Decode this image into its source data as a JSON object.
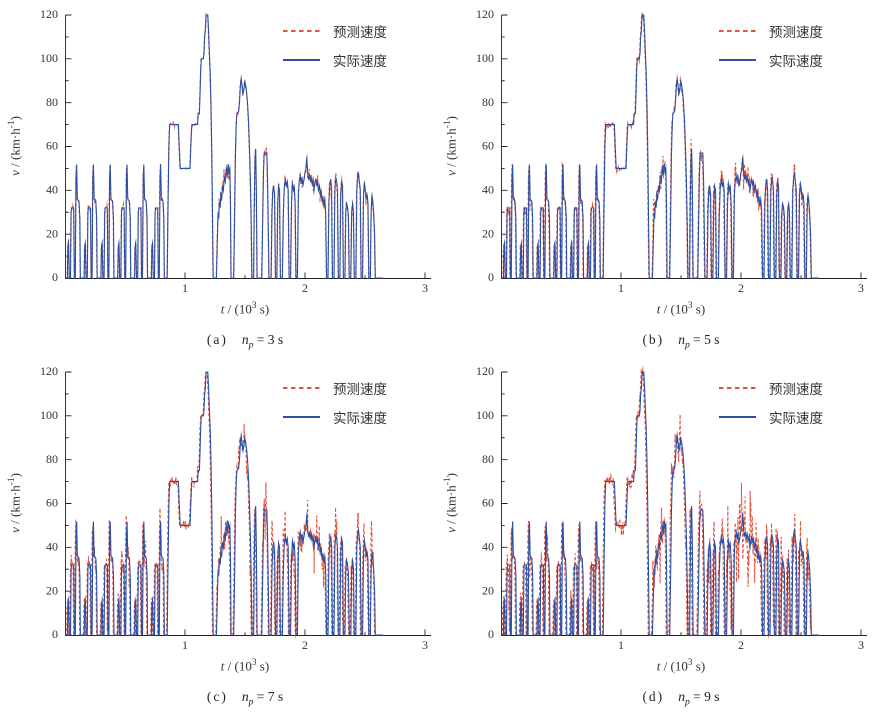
{
  "figure": {
    "background": "#ffffff",
    "text_color": "#333333"
  },
  "chart_data": {
    "type": "line",
    "title": "",
    "shared": {
      "xlabel": {
        "var": "t",
        "mid": " / (10",
        "sup": "3",
        "end": " s)"
      },
      "ylabel": {
        "var": "v",
        "mid": " / (km·h",
        "sup": "-1",
        "end": ")"
      },
      "xlim": [
        0,
        3.07
      ],
      "ylim": [
        0,
        120
      ],
      "x_major_ticks": [
        1,
        2,
        3
      ],
      "x_minor_ticks": [
        0.5,
        1.5,
        2.5
      ],
      "y_major_ticks": [
        0,
        20,
        40,
        60,
        80,
        100,
        120
      ],
      "y_minor_ticks": [
        10,
        30,
        50,
        70,
        90,
        110
      ],
      "grid": false,
      "legend_position": "top-right",
      "series": [
        {
          "name": "预测速度",
          "style": "dashed",
          "color": "#e2503a"
        },
        {
          "name": "实际速度",
          "style": "solid",
          "color": "#2b4fa5"
        }
      ],
      "param": {
        "var": "n",
        "sub": "p"
      },
      "actual_speed_profile": {
        "units": {
          "t": "10^3 s",
          "v": "km/h"
        },
        "urban_cycle_starts": [
          0.02,
          0.16,
          0.3,
          0.44,
          0.58,
          0.72
        ],
        "urban_cycle_shape": [
          [
            0,
            0
          ],
          [
            0.004,
            14
          ],
          [
            0.01,
            16
          ],
          [
            0.016,
            0
          ],
          [
            0.026,
            0
          ],
          [
            0.031,
            30
          ],
          [
            0.035,
            32
          ],
          [
            0.053,
            32
          ],
          [
            0.058,
            0
          ],
          [
            0.066,
            0
          ],
          [
            0.072,
            46
          ],
          [
            0.077,
            52
          ],
          [
            0.083,
            36
          ],
          [
            0.097,
            35
          ],
          [
            0.104,
            27
          ],
          [
            0.108,
            0
          ]
        ],
        "keypoints": [
          [
            0.828,
            0
          ],
          [
            0.852,
            0
          ],
          [
            0.858,
            30
          ],
          [
            0.866,
            60
          ],
          [
            0.872,
            70
          ],
          [
            0.945,
            70
          ],
          [
            0.952,
            60
          ],
          [
            0.96,
            50
          ],
          [
            1.042,
            50
          ],
          [
            1.05,
            62
          ],
          [
            1.057,
            70
          ],
          [
            1.105,
            70
          ],
          [
            1.11,
            75
          ],
          [
            1.12,
            75
          ],
          [
            1.126,
            85
          ],
          [
            1.131,
            95
          ],
          [
            1.136,
            100
          ],
          [
            1.152,
            100
          ],
          [
            1.158,
            102
          ],
          [
            1.164,
            110
          ],
          [
            1.17,
            113
          ],
          [
            1.176,
            120
          ],
          [
            1.19,
            120
          ],
          [
            1.197,
            112
          ],
          [
            1.203,
            103
          ],
          [
            1.21,
            94
          ],
          [
            1.217,
            78
          ],
          [
            1.224,
            55
          ],
          [
            1.23,
            25
          ],
          [
            1.235,
            0
          ],
          [
            1.262,
            0
          ],
          [
            1.27,
            18
          ],
          [
            1.276,
            30
          ],
          [
            1.281,
            27
          ],
          [
            1.287,
            35
          ],
          [
            1.293,
            32
          ],
          [
            1.299,
            38
          ],
          [
            1.306,
            36
          ],
          [
            1.313,
            42
          ],
          [
            1.32,
            40
          ],
          [
            1.328,
            46
          ],
          [
            1.336,
            44
          ],
          [
            1.344,
            50
          ],
          [
            1.352,
            47
          ],
          [
            1.36,
            52
          ],
          [
            1.367,
            48
          ],
          [
            1.374,
            50
          ],
          [
            1.379,
            35
          ],
          [
            1.384,
            0
          ],
          [
            1.406,
            0
          ],
          [
            1.413,
            25
          ],
          [
            1.42,
            55
          ],
          [
            1.427,
            70
          ],
          [
            1.433,
            75
          ],
          [
            1.447,
            76
          ],
          [
            1.454,
            80
          ],
          [
            1.461,
            87
          ],
          [
            1.468,
            91
          ],
          [
            1.475,
            88
          ],
          [
            1.483,
            84
          ],
          [
            1.491,
            86
          ],
          [
            1.498,
            90
          ],
          [
            1.505,
            88
          ],
          [
            1.513,
            85
          ],
          [
            1.521,
            80
          ],
          [
            1.529,
            72
          ],
          [
            1.537,
            60
          ],
          [
            1.545,
            45
          ],
          [
            1.552,
            25
          ],
          [
            1.558,
            0
          ],
          [
            1.572,
            0
          ],
          [
            1.578,
            35
          ],
          [
            1.584,
            55
          ],
          [
            1.589,
            59
          ],
          [
            1.595,
            40
          ],
          [
            1.601,
            0
          ],
          [
            1.64,
            0
          ],
          [
            1.647,
            25
          ],
          [
            1.654,
            48
          ],
          [
            1.66,
            57
          ],
          [
            1.682,
            57
          ],
          [
            1.688,
            45
          ],
          [
            1.695,
            20
          ],
          [
            1.7,
            0
          ],
          [
            1.718,
            0
          ],
          [
            1.725,
            30
          ],
          [
            1.732,
            40
          ],
          [
            1.739,
            42
          ],
          [
            1.747,
            38
          ],
          [
            1.754,
            0
          ],
          [
            1.766,
            0
          ],
          [
            1.773,
            34
          ],
          [
            1.78,
            42
          ],
          [
            1.788,
            40
          ],
          [
            1.795,
            0
          ],
          [
            1.812,
            0
          ],
          [
            1.819,
            28
          ],
          [
            1.827,
            41
          ],
          [
            1.836,
            45
          ],
          [
            1.844,
            42
          ],
          [
            1.852,
            44
          ],
          [
            1.86,
            40
          ],
          [
            1.868,
            0
          ],
          [
            1.88,
            0
          ],
          [
            1.888,
            34
          ],
          [
            1.895,
            43
          ],
          [
            1.903,
            40
          ],
          [
            1.91,
            42
          ],
          [
            1.918,
            34
          ],
          [
            1.925,
            0
          ],
          [
            1.937,
            0
          ],
          [
            1.945,
            38
          ],
          [
            1.952,
            44
          ],
          [
            1.96,
            47
          ],
          [
            1.967,
            44
          ],
          [
            1.975,
            46
          ],
          [
            1.982,
            42
          ],
          [
            1.992,
            45
          ],
          [
            2.0,
            48
          ],
          [
            2.008,
            50
          ],
          [
            2.015,
            55
          ],
          [
            2.022,
            48
          ],
          [
            2.03,
            45
          ],
          [
            2.038,
            47
          ],
          [
            2.045,
            44
          ],
          [
            2.052,
            46
          ],
          [
            2.06,
            43
          ],
          [
            2.068,
            45
          ],
          [
            2.075,
            40
          ],
          [
            2.082,
            43
          ],
          [
            2.09,
            45
          ],
          [
            2.098,
            42
          ],
          [
            2.105,
            44
          ],
          [
            2.112,
            40
          ],
          [
            2.12,
            42
          ],
          [
            2.128,
            38
          ],
          [
            2.135,
            40
          ],
          [
            2.142,
            35
          ],
          [
            2.15,
            37
          ],
          [
            2.158,
            33
          ],
          [
            2.165,
            36
          ],
          [
            2.172,
            30
          ],
          [
            2.18,
            0
          ],
          [
            2.192,
            0
          ],
          [
            2.199,
            34
          ],
          [
            2.207,
            43
          ],
          [
            2.215,
            45
          ],
          [
            2.222,
            40
          ],
          [
            2.229,
            0
          ],
          [
            2.242,
            0
          ],
          [
            2.249,
            40
          ],
          [
            2.257,
            46
          ],
          [
            2.264,
            44
          ],
          [
            2.271,
            40
          ],
          [
            2.278,
            0
          ],
          [
            2.291,
            0
          ],
          [
            2.298,
            38
          ],
          [
            2.306,
            44
          ],
          [
            2.313,
            42
          ],
          [
            2.32,
            0
          ],
          [
            2.333,
            0
          ],
          [
            2.34,
            30
          ],
          [
            2.347,
            34
          ],
          [
            2.355,
            32
          ],
          [
            2.362,
            28
          ],
          [
            2.369,
            0
          ],
          [
            2.382,
            0
          ],
          [
            2.389,
            30
          ],
          [
            2.397,
            34
          ],
          [
            2.404,
            30
          ],
          [
            2.411,
            0
          ],
          [
            2.424,
            0
          ],
          [
            2.432,
            40
          ],
          [
            2.439,
            46
          ],
          [
            2.446,
            48
          ],
          [
            2.453,
            44
          ],
          [
            2.461,
            40
          ],
          [
            2.468,
            0
          ],
          [
            2.48,
            0
          ],
          [
            2.488,
            38
          ],
          [
            2.495,
            43
          ],
          [
            2.503,
            40
          ],
          [
            2.51,
            36
          ],
          [
            2.518,
            38
          ],
          [
            2.525,
            34
          ],
          [
            2.532,
            0
          ],
          [
            2.545,
            0
          ],
          [
            2.551,
            30
          ],
          [
            2.558,
            38
          ],
          [
            2.565,
            35
          ],
          [
            2.572,
            30
          ],
          [
            2.58,
            20
          ],
          [
            2.586,
            0
          ],
          [
            2.62,
            0
          ]
        ]
      },
      "prediction_model": {
        "error_zones": [
          [
            0,
            0.852,
            0.5
          ],
          [
            0.852,
            1.24,
            0.22
          ],
          [
            1.24,
            1.41,
            1.0
          ],
          [
            1.41,
            1.57,
            0.6
          ],
          [
            1.57,
            2.65,
            1.0
          ]
        ]
      }
    },
    "subplots": [
      {
        "label": "(a)",
        "value_text": " = 3 s",
        "np_seconds": 3,
        "noise_amplitude_kmh": 2.5,
        "lead_s": 2,
        "seed": 11
      },
      {
        "label": "(b)",
        "value_text": " = 5 s",
        "np_seconds": 5,
        "noise_amplitude_kmh": 4.5,
        "lead_s": 4,
        "seed": 22
      },
      {
        "label": "(c)",
        "value_text": " = 7 s",
        "np_seconds": 7,
        "noise_amplitude_kmh": 8.0,
        "lead_s": 6,
        "seed": 33
      },
      {
        "label": "(d)",
        "value_text": " = 9 s",
        "np_seconds": 9,
        "noise_amplitude_kmh": 12.0,
        "lead_s": 8,
        "seed": 44
      }
    ]
  }
}
